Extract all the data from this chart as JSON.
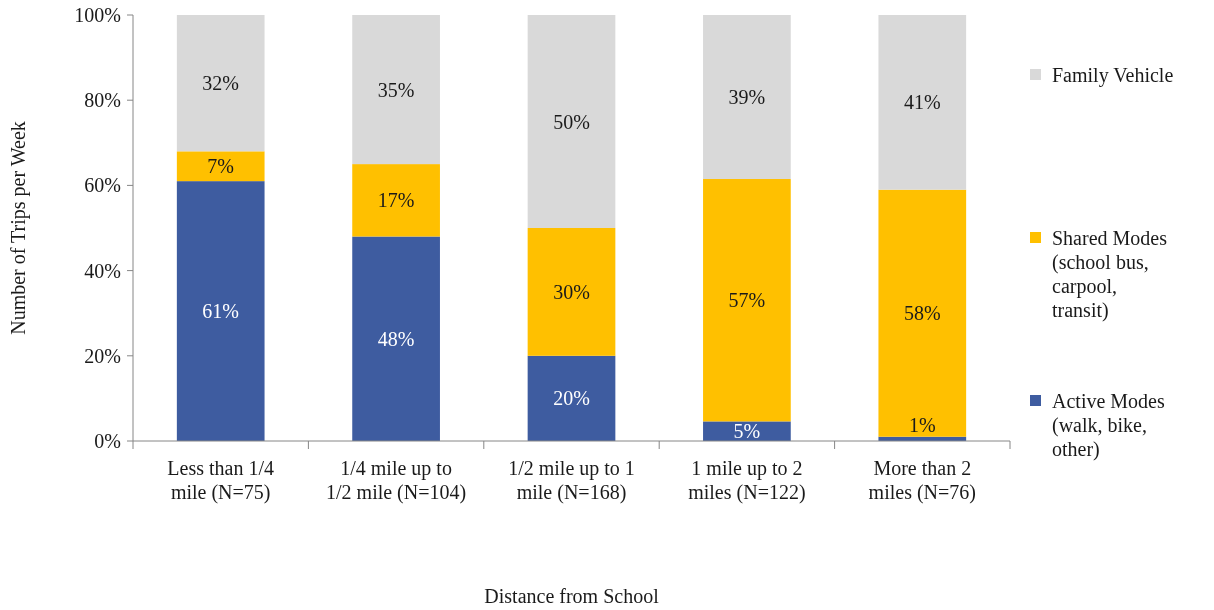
{
  "chart_data": {
    "type": "bar",
    "stacked": true,
    "xlabel": "Distance from School",
    "ylabel": "Number of Trips per Week",
    "categories": [
      "Less than 1/4 mile (N=75)",
      "1/4 mile up to 1/2 mile (N=104)",
      "1/2 mile up to 1 mile (N=168)",
      "1 mile up to 2 miles (N=122)",
      "More than 2 miles (N=76)"
    ],
    "series": [
      {
        "name": "Active Modes (walk, bike, other)",
        "color": "#3e5ca0",
        "values": [
          61,
          48,
          20,
          4.6,
          1
        ],
        "value_labels": [
          "61%",
          "48%",
          "20%",
          "5%",
          "1%"
        ]
      },
      {
        "name": "Shared Modes (school bus, carpool, transit)",
        "color": "#ffc000",
        "values": [
          7,
          17,
          30,
          56.9,
          58
        ],
        "value_labels": [
          "7%",
          "17%",
          "30%",
          "57%",
          "58%"
        ]
      },
      {
        "name": "Family Vehicle",
        "color": "#d9d9d9",
        "values": [
          32,
          35,
          50,
          38.5,
          41
        ],
        "value_labels": [
          "32%",
          "35%",
          "50%",
          "39%",
          "41%"
        ]
      }
    ],
    "ylim": [
      0,
      100
    ],
    "yticks": [
      {
        "value": 0,
        "label": "0%"
      },
      {
        "value": 20,
        "label": "20%"
      },
      {
        "value": 40,
        "label": "40%"
      },
      {
        "value": 60,
        "label": "60%"
      },
      {
        "value": 80,
        "label": "80%"
      },
      {
        "value": 100,
        "label": "100%"
      }
    ],
    "grid": false,
    "legend": "right"
  }
}
